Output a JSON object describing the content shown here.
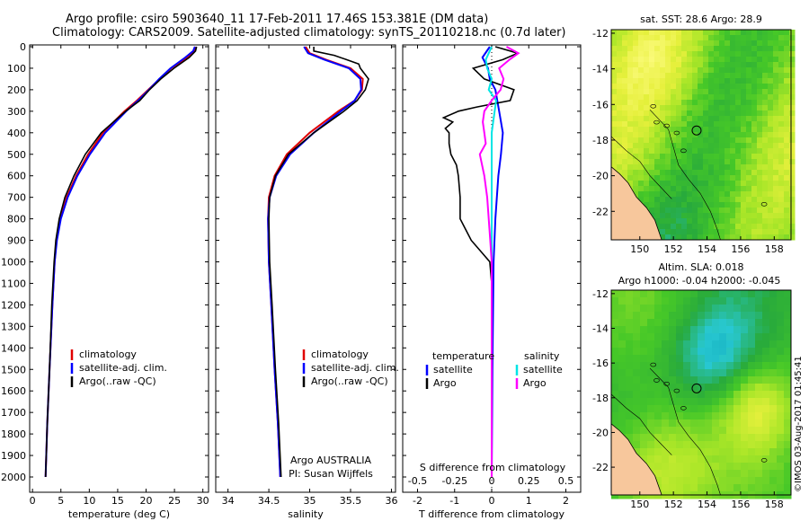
{
  "header": {
    "line1": "Argo profile: csiro 5903640_11 17-Feb-2011 17.46S 153.381E (DM data)",
    "line2": "Climatology: CARS2009. Satellite-adjusted climatology: synTS_20110218.nc (0.7d later)"
  },
  "credit": "©IMOS 03-Aug-2017 01:45:41",
  "colors": {
    "clim": "#e00000",
    "sat": "#0000ff",
    "argo": "#000000",
    "sat_s": "#00e5e5",
    "argo_s": "#ff00ff",
    "land": "#f7c79c"
  },
  "chart_data": [
    {
      "type": "line",
      "name": "temperature-profile",
      "xlabel": "temperature (deg C)",
      "xlim": [
        -0.5,
        31
      ],
      "xticks": [
        0,
        5,
        10,
        15,
        20,
        25,
        30
      ],
      "ylim": [
        0,
        2050
      ],
      "yticks": [
        0,
        100,
        200,
        300,
        400,
        500,
        600,
        700,
        800,
        900,
        1000,
        1100,
        1200,
        1300,
        1400,
        1500,
        1600,
        1700,
        1800,
        1900,
        2000
      ],
      "series": [
        {
          "name": "climatology",
          "color_key": "clim",
          "depth": [
            0,
            20,
            50,
            100,
            150,
            200,
            250,
            300,
            400,
            500,
            600,
            700,
            800,
            900,
            1000,
            1200,
            1500,
            1750,
            2000
          ],
          "values": [
            28.7,
            28.5,
            27.2,
            24.4,
            22.4,
            20.4,
            18.4,
            16.2,
            12.4,
            9.8,
            7.7,
            6.0,
            4.9,
            4.2,
            3.9,
            3.5,
            3.0,
            2.6,
            2.3
          ]
        },
        {
          "name": "satellite-adj. clim.",
          "color_key": "sat",
          "depth": [
            0,
            20,
            50,
            100,
            150,
            200,
            250,
            300,
            400,
            500,
            600,
            700,
            800,
            900,
            1000,
            1200,
            1500,
            1750,
            2000
          ],
          "values": [
            28.6,
            28.3,
            26.9,
            24.3,
            22.3,
            20.5,
            18.6,
            16.5,
            12.8,
            10.1,
            7.9,
            6.2,
            5.0,
            4.3,
            3.9,
            3.5,
            3.0,
            2.6,
            2.3
          ]
        },
        {
          "name": "Argo(..raw -QC)",
          "color_key": "argo",
          "depth": [
            0,
            20,
            50,
            100,
            150,
            200,
            250,
            300,
            400,
            500,
            600,
            700,
            800,
            900,
            1000,
            1200,
            1500,
            1750,
            2000
          ],
          "values": [
            28.9,
            28.7,
            27.6,
            24.9,
            22.6,
            20.6,
            18.9,
            16.4,
            12.1,
            9.3,
            7.3,
            5.7,
            4.7,
            4.1,
            3.8,
            3.4,
            3.0,
            2.6,
            2.3
          ]
        }
      ],
      "legend": [
        "climatology",
        "satellite-adj. clim.",
        "Argo(..raw -QC)"
      ]
    },
    {
      "type": "line",
      "name": "salinity-profile",
      "xlabel": "salinity",
      "xlim": [
        33.85,
        36.05
      ],
      "xticks": [
        34,
        34.5,
        35,
        35.5,
        36
      ],
      "ylim": [
        0,
        2050
      ],
      "series": [
        {
          "name": "climatology",
          "color_key": "clim",
          "depth": [
            0,
            30,
            60,
            100,
            150,
            200,
            250,
            300,
            400,
            500,
            600,
            700,
            800,
            1000,
            1200,
            1500,
            1750,
            2000
          ],
          "values": [
            34.95,
            35.0,
            35.2,
            35.5,
            35.65,
            35.64,
            35.55,
            35.35,
            35.0,
            34.72,
            34.57,
            34.5,
            34.49,
            34.5,
            34.53,
            34.57,
            34.61,
            34.64
          ]
        },
        {
          "name": "satellite-adj. clim.",
          "color_key": "sat",
          "depth": [
            0,
            30,
            60,
            100,
            150,
            200,
            250,
            300,
            400,
            500,
            600,
            700,
            800,
            1000,
            1200,
            1500,
            1750,
            2000
          ],
          "values": [
            34.93,
            34.98,
            35.18,
            35.48,
            35.62,
            35.63,
            35.55,
            35.38,
            35.05,
            34.76,
            34.59,
            34.51,
            34.49,
            34.5,
            34.53,
            34.57,
            34.61,
            34.64
          ]
        },
        {
          "name": "Argo(..raw -QC)",
          "color_key": "argo",
          "depth": [
            0,
            20,
            40,
            60,
            80,
            100,
            150,
            200,
            250,
            300,
            400,
            500,
            600,
            700,
            800,
            1000,
            1200,
            1500,
            1750,
            2000
          ],
          "values": [
            35.05,
            35.05,
            35.3,
            35.45,
            35.6,
            35.62,
            35.72,
            35.68,
            35.58,
            35.42,
            35.05,
            34.74,
            34.58,
            34.51,
            34.5,
            34.51,
            34.54,
            34.58,
            34.62,
            34.65
          ]
        }
      ],
      "legend": [
        "climatology",
        "satellite-adj. clim.",
        "Argo(..raw -QC)"
      ],
      "annotation": [
        "Argo AUSTRALIA",
        "PI: Susan Wijffels"
      ]
    },
    {
      "type": "line",
      "name": "difference-profile",
      "xlabel": "T difference from climatology",
      "xlabel_top": "S difference from climatology",
      "xlim": [
        -2.4,
        2.4
      ],
      "xticks": [
        -2,
        -1,
        0,
        1,
        2
      ],
      "sticks_labels": [
        "-0.5",
        "-0.25",
        "0",
        "0.25",
        "0.5"
      ],
      "sticks_values": [
        -0.5,
        -0.25,
        0,
        0.25,
        0.5
      ],
      "ylim": [
        0,
        2050
      ],
      "series": [
        {
          "name": "T satellite",
          "color_key": "sat",
          "depth": [
            0,
            50,
            100,
            150,
            200,
            300,
            400,
            500,
            600,
            800,
            1000,
            1500,
            2000
          ],
          "values": [
            -0.05,
            -0.25,
            -0.1,
            -0.05,
            0.1,
            0.2,
            0.3,
            0.25,
            0.18,
            0.1,
            0.05,
            0.02,
            0.0
          ]
        },
        {
          "name": "T Argo",
          "color_key": "argo",
          "depth": [
            0,
            30,
            60,
            100,
            150,
            200,
            250,
            280,
            300,
            330,
            350,
            380,
            400,
            450,
            500,
            550,
            600,
            700,
            800,
            900,
            950,
            1000,
            1100,
            1500,
            2000
          ],
          "values": [
            0.1,
            0.7,
            0.3,
            -0.5,
            -0.2,
            0.6,
            0.5,
            -0.4,
            -0.9,
            -1.3,
            -1.05,
            -1.25,
            -1.15,
            -1.15,
            -1.1,
            -0.95,
            -0.9,
            -0.85,
            -0.85,
            -0.55,
            -0.3,
            -0.05,
            0.0,
            0.0,
            0.0
          ]
        },
        {
          "name": "S satellite",
          "color_key": "sat_s",
          "depth": [
            0,
            30,
            60,
            100,
            150,
            200,
            250,
            300,
            400,
            500,
            600,
            800,
            1000,
            1500,
            2000
          ],
          "values": [
            0.0,
            -0.02,
            -0.04,
            -0.03,
            0.0,
            -0.02,
            0.03,
            0.02,
            0.0,
            0.0,
            0.0,
            0.0,
            0.0,
            0.0,
            0.0
          ]
        },
        {
          "name": "S Argo",
          "color_key": "argo_s",
          "depth": [
            0,
            30,
            60,
            100,
            150,
            200,
            250,
            300,
            350,
            400,
            450,
            500,
            600,
            700,
            800,
            900,
            1000,
            1500,
            2000
          ],
          "values": [
            0.1,
            0.18,
            0.12,
            0.05,
            0.08,
            0.06,
            0.0,
            -0.05,
            -0.06,
            -0.05,
            -0.04,
            -0.08,
            -0.05,
            -0.03,
            -0.02,
            -0.01,
            0.0,
            0.0,
            0.0
          ]
        }
      ],
      "legend_temperature": {
        "title": "temperature",
        "items": [
          "satellite",
          "Argo"
        ]
      },
      "legend_salinity": {
        "title": "salinity",
        "items": [
          "satellite",
          "Argo"
        ]
      }
    },
    {
      "type": "heatmap",
      "name": "sst-map",
      "title": "sat. SST: 28.6  Argo: 28.9",
      "xlim": [
        148.3,
        159.0
      ],
      "ylim": [
        -23.6,
        -11.8
      ],
      "xticks": [
        150,
        152,
        154,
        156,
        158
      ],
      "yticks": [
        -12,
        -14,
        -16,
        -18,
        -20,
        -22
      ],
      "float_position": [
        153.381,
        -17.46
      ]
    },
    {
      "type": "heatmap",
      "name": "sla-map",
      "title": [
        "Altim. SLA: 0.018",
        "Argo h1000: -0.04  h2000: -0.045"
      ],
      "xlim": [
        148.3,
        159.0
      ],
      "ylim": [
        -23.6,
        -11.8
      ],
      "xticks": [
        150,
        152,
        154,
        156,
        158
      ],
      "yticks": [
        -12,
        -14,
        -16,
        -18,
        -20,
        -22
      ],
      "float_position": [
        153.381,
        -17.46
      ]
    }
  ]
}
